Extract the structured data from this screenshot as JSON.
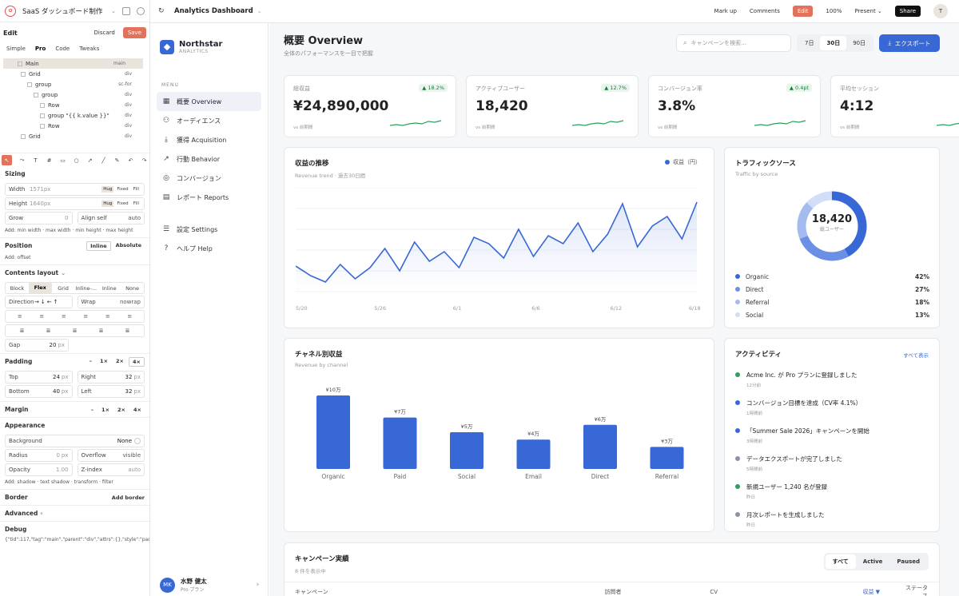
{
  "editor": {
    "project_title": "SaaS ダッシュボード制作",
    "edit_label": "Edit",
    "discard": "Discard",
    "save": "Save",
    "tabs": [
      "Simple",
      "Pro",
      "Code",
      "Tweaks"
    ],
    "active_tab": "Pro",
    "tree": [
      {
        "label": "Main",
        "tag": "main",
        "indent": 0,
        "selected": true
      },
      {
        "label": "Grid",
        "tag": "div",
        "indent": 1
      },
      {
        "label": "group",
        "tag": "sc-for",
        "indent": 2
      },
      {
        "label": "group",
        "tag": "div",
        "indent": 3
      },
      {
        "label": "Row",
        "tag": "div",
        "indent": 4
      },
      {
        "label": "group  \"{{ k.value }}\"",
        "tag": "div",
        "indent": 4
      },
      {
        "label": "Row",
        "tag": "div",
        "indent": 4
      },
      {
        "label": "Grid",
        "tag": "div",
        "indent": 1
      }
    ],
    "sizing": {
      "title": "Sizing",
      "width_label": "Width",
      "width_value": "1571px",
      "height_label": "Height",
      "height_value": "1640px",
      "modes": [
        "Hug",
        "Fixed",
        "Fill"
      ],
      "grow_label": "Grow",
      "grow_value": "0",
      "align_label": "Align self",
      "align_value": "auto",
      "hint": "Add: min width · max width · min height · max height"
    },
    "position": {
      "title": "Position",
      "opts": [
        "Inline",
        "Absolute"
      ],
      "hint": "Add: offset"
    },
    "layout": {
      "title": "Contents layout",
      "modes": [
        "Block",
        "Flex",
        "Grid",
        "Inline-...",
        "Inline",
        "None"
      ],
      "direction_label": "Direction",
      "wrap_label": "Wrap",
      "wrap_value": "nowrap",
      "gap_label": "Gap",
      "gap_value": "20",
      "unit": "px"
    },
    "padding": {
      "title": "Padding",
      "mults": [
        "–",
        "1×",
        "2×",
        "4×"
      ],
      "top_label": "Top",
      "top": "24",
      "right_label": "Right",
      "right": "32",
      "bottom_label": "Bottom",
      "bottom": "40",
      "left_label": "Left",
      "left": "32"
    },
    "margin": {
      "title": "Margin",
      "mults": [
        "–",
        "1×",
        "2×",
        "4×"
      ]
    },
    "appearance": {
      "title": "Appearance",
      "bg_label": "Background",
      "bg_value": "None",
      "radius_label": "Radius",
      "radius_value": "0",
      "overflow_label": "Overflow",
      "overflow_value": "visible",
      "opacity_label": "Opacity",
      "opacity_value": "1.00",
      "z_label": "Z-index",
      "z_value": "auto",
      "hint": "Add: shadow · text shadow · transform · filter"
    },
    "border": {
      "title": "Border",
      "action": "Add border"
    },
    "advanced": "Advanced",
    "debug": {
      "title": "Debug",
      "text": "{\"tid\":117,\"tag\":\"main\",\"parent\":\"div\",\"attrs\":{},\"style\":\"paddi"
    }
  },
  "topbar": {
    "title": "Analytics Dashboard",
    "markup": "Mark up",
    "comments": "Comments",
    "edit": "Edit",
    "zoom": "100%",
    "present": "Present",
    "share": "Share",
    "avatar": "T"
  },
  "app": {
    "brand": "Northstar",
    "brand_sub": "ANALYTICS",
    "menu_header": "MENU",
    "menu": [
      {
        "label": "概要 Overview",
        "icon": "grid-icon",
        "active": true
      },
      {
        "label": "オーディエンス",
        "icon": "users-icon"
      },
      {
        "label": "獲得 Acquisition",
        "icon": "download-icon"
      },
      {
        "label": "行動 Behavior",
        "icon": "trend-icon"
      },
      {
        "label": "コンバージョン",
        "icon": "target-icon"
      },
      {
        "label": "レポート Reports",
        "icon": "document-icon"
      }
    ],
    "menu2": [
      {
        "label": "設定 Settings",
        "icon": "sliders-icon"
      },
      {
        "label": "ヘルプ Help",
        "icon": "help-icon"
      }
    ],
    "user": {
      "initials": "MK",
      "name": "水野 健太",
      "plan": "Pro プラン"
    }
  },
  "header": {
    "title": "概要 Overview",
    "subtitle": "全体のパフォーマンスを一目で把握",
    "search_placeholder": "キャンペーンを検索...",
    "ranges": [
      "7日",
      "30日",
      "90日"
    ],
    "active_range": "30日",
    "export": "エクスポート"
  },
  "kpis": [
    {
      "label": "総収益",
      "value": "¥24,890,000",
      "delta": "▲ 18.2%",
      "vs": "vs 前期間"
    },
    {
      "label": "アクティブユーザー",
      "value": "18,420",
      "delta": "▲ 12.7%",
      "vs": "vs 前期間"
    },
    {
      "label": "コンバージョン率",
      "value": "3.8%",
      "delta": "▲ 0.4pt",
      "vs": "vs 前期間"
    },
    {
      "label": "平均セッション",
      "value": "4:12",
      "delta": "",
      "vs": "vs 前期間"
    }
  ],
  "revenue": {
    "title": "収益の推移",
    "subtitle": "Revenue trend · 過去30日間",
    "legend": "収益（円）",
    "color": "#3867d6",
    "x_labels": [
      "5/20",
      "5/26",
      "6/1",
      "6/6",
      "6/12",
      "6/18"
    ]
  },
  "traffic": {
    "title": "トラフィックソース",
    "subtitle": "Traffic by source",
    "center_value": "18,420",
    "center_label": "総ユーザー",
    "sources": [
      {
        "name": "Organic",
        "pct": "42%",
        "value": 42,
        "color": "#3867d6"
      },
      {
        "name": "Direct",
        "pct": "27%",
        "value": 27,
        "color": "#6b8fe6"
      },
      {
        "name": "Referral",
        "pct": "18%",
        "value": 18,
        "color": "#a4bbf0"
      },
      {
        "name": "Social",
        "pct": "13%",
        "value": 13,
        "color": "#d2ddf7"
      }
    ]
  },
  "channel": {
    "title": "チャネル別収益",
    "subtitle": "Revenue by channel"
  },
  "chart_data": {
    "type": "bar",
    "categories": [
      "Organic",
      "Paid",
      "Social",
      "Email",
      "Direct",
      "Referral"
    ],
    "values": [
      10,
      7,
      5,
      4,
      6,
      3
    ],
    "labels": [
      "¥10万",
      "¥7万",
      "¥5万",
      "¥4万",
      "¥6万",
      "¥3万"
    ],
    "ylim": [
      0,
      10
    ],
    "color": "#3867d6"
  },
  "activity": {
    "title": "アクティビティ",
    "link": "すべて表示",
    "items": [
      {
        "text": "Acme Inc. が Pro プランに登録しました",
        "time": "12分前",
        "color": "#2e9e5b"
      },
      {
        "text": "コンバージョン目標を達成（CV率 4.1%）",
        "time": "1時間前",
        "color": "#3867d6"
      },
      {
        "text": "「Summer Sale 2026」キャンペーンを開始",
        "time": "3時間前",
        "color": "#3867d6"
      },
      {
        "text": "データエクスポートが完了しました",
        "time": "5時間前",
        "color": "#8a94a6"
      },
      {
        "text": "新規ユーザー 1,240 名が登録",
        "time": "昨日",
        "color": "#2e9e5b"
      },
      {
        "text": "月次レポートを生成しました",
        "time": "昨日",
        "color": "#8a94a6"
      }
    ]
  },
  "campaigns": {
    "title": "キャンペーン実績",
    "subtitle": "8 件を表示中",
    "filters": [
      "すべて",
      "Active",
      "Paused"
    ],
    "active_filter": "すべて",
    "columns": [
      "キャンペーン",
      "訪問者",
      "CV",
      "収益 ▼",
      "ステータス"
    ]
  }
}
